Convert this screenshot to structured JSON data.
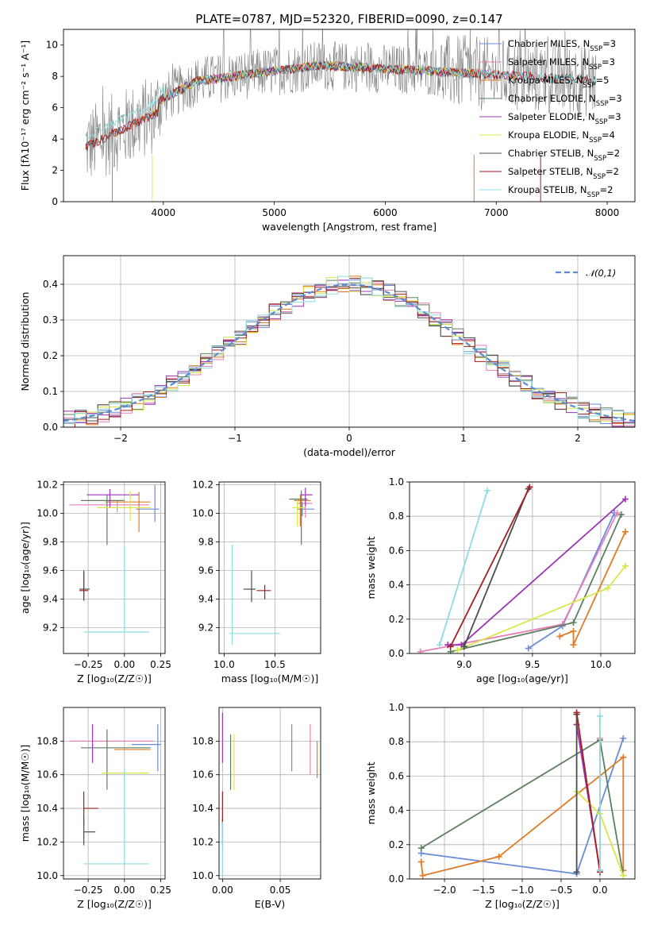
{
  "figure_title": "PLATE=0787, MJD=52320, FIBERID=0090, z=0.147",
  "chart_data": [
    {
      "id": "spectrum",
      "type": "line",
      "title": "PLATE=0787, MJD=52320, FIBERID=0090, z=0.147",
      "xlabel": "wavelength [Angstrom, rest frame]",
      "ylabel": "Flux [fλ10⁻¹⁷ erg cm⁻² s⁻¹ A⁻¹]",
      "xlim": [
        3100,
        8250
      ],
      "ylim": [
        0,
        11
      ],
      "xticks": [
        4000,
        5000,
        6000,
        7000,
        8000
      ],
      "yticks": [
        0,
        2,
        4,
        6,
        8,
        10
      ],
      "grid": false,
      "legend_position": "upper right",
      "data_series": {
        "name": "",
        "color": "#808080",
        "x_range": [
          3300,
          7900
        ]
      },
      "model_series": [
        {
          "name": "Chabrier MILES, NSSP=3",
          "label_base": "Chabrier MILES, N",
          "label_sub": "SSP",
          "label_tail": "=3",
          "color": "#6A8BD8",
          "x_range": [
            3540,
            7400
          ]
        },
        {
          "name": "Salpeter MILES, NSSP=3",
          "label_base": "Salpeter MILES, N",
          "label_sub": "SSP",
          "label_tail": "=3",
          "color": "#E87FB8",
          "x_range": [
            3540,
            7400
          ]
        },
        {
          "name": "Kroupa MILES, NSSP=5",
          "label_base": "Kroupa MILES, N",
          "label_sub": "SSP",
          "label_tail": "=5",
          "color": "#E07B25",
          "x_range": [
            3540,
            7400
          ]
        },
        {
          "name": "Chabrier ELODIE, NSSP=3",
          "label_base": "Chabrier ELODIE, N",
          "label_sub": "SSP",
          "label_tail": "=3",
          "color": "#5E7F5E",
          "x_range": [
            3900,
            6800
          ]
        },
        {
          "name": "Salpeter ELODIE, NSSP=3",
          "label_base": "Salpeter ELODIE, N",
          "label_sub": "SSP",
          "label_tail": "=3",
          "color": "#9B35B5",
          "x_range": [
            3900,
            6800
          ]
        },
        {
          "name": "Kroupa ELODIE, NSSP=4",
          "label_base": "Kroupa ELODIE, N",
          "label_sub": "SSP",
          "label_tail": "=4",
          "color": "#D8E84A",
          "x_range": [
            3900,
            6800
          ]
        },
        {
          "name": "Chabrier STELIB, NSSP=2",
          "label_base": "Chabrier STELIB, N",
          "label_sub": "SSP",
          "label_tail": "=2",
          "color": "#4D4D4D",
          "x_range": [
            3300,
            7900
          ]
        },
        {
          "name": "Salpeter STELIB, NSSP=2",
          "label_base": "Salpeter STELIB, N",
          "label_sub": "SSP",
          "label_tail": "=2",
          "color": "#A31F23",
          "x_range": [
            3300,
            7900
          ]
        },
        {
          "name": "Kroupa STELIB, NSSP=2",
          "label_base": "Kroupa STELIB, N",
          "label_sub": "SSP",
          "label_tail": "=2",
          "color": "#8EDCE0",
          "x_range": [
            3300,
            7900
          ]
        }
      ]
    },
    {
      "id": "residual-histogram",
      "type": "step-histogram",
      "xlabel": "(data-model)/error",
      "ylabel": "Normed distribution",
      "xlim": [
        -2.5,
        2.5
      ],
      "ylim": [
        0,
        0.48
      ],
      "xticks": [
        -2,
        -1,
        0,
        1,
        2
      ],
      "xticklabels": [
        "−2",
        "−1",
        "0",
        "1",
        "2"
      ],
      "yticks": [
        0,
        0.1,
        0.2,
        0.3,
        0.4
      ],
      "yticklabels": [
        "0.0",
        "0.1",
        "0.2",
        "0.3",
        "0.4"
      ],
      "grid": true,
      "bin_width": 0.1,
      "gaussian": {
        "label": "𝒩(0,1)",
        "mean": 0,
        "sigma": 1,
        "color": "#5B8CD0"
      },
      "legend_position": "upper right"
    },
    {
      "id": "age-vs-Z",
      "type": "errorbar",
      "xlabel": "Z [log₁₀(Z/Z☉)]",
      "ylabel": "age  [log₁₀(age/yr)]",
      "xlim": [
        -0.42,
        0.28
      ],
      "ylim": [
        9.02,
        10.22
      ],
      "xticks": [
        -0.25,
        0,
        0.25
      ],
      "xticklabels": [
        "−0.25",
        "0.00",
        "0.25"
      ],
      "yticks": [
        9.2,
        9.4,
        9.6,
        9.8,
        10.0,
        10.2
      ],
      "yticklabels": [
        "9.2",
        "9.4",
        "9.6",
        "9.8",
        "10.0",
        "10.2"
      ],
      "grid": true,
      "points": [
        {
          "color": "#6A8BD8",
          "x": 0.21,
          "xerr": [
            0.13,
            0.03
          ],
          "y": 10.03,
          "yerr": [
            0.09,
            0.17
          ]
        },
        {
          "color": "#E87FB8",
          "x": -0.05,
          "xerr": [
            0.33,
            0.22
          ],
          "y": 10.06,
          "yerr": [
            0.05,
            0.03
          ]
        },
        {
          "color": "#E07B25",
          "x": 0.1,
          "xerr": [
            0.23,
            0.08
          ],
          "y": 10.08,
          "yerr": [
            0.21,
            0.07
          ]
        },
        {
          "color": "#5E7F5E",
          "x": -0.12,
          "xerr": [
            0.18,
            0.12
          ],
          "y": 10.09,
          "yerr": [
            0.31,
            0.04
          ]
        },
        {
          "color": "#9B35B5",
          "x": -0.1,
          "xerr": [
            0.16,
            0.2
          ],
          "y": 10.13,
          "yerr": [
            0.09,
            0.04
          ]
        },
        {
          "color": "#D8E84A",
          "x": 0.04,
          "xerr": [
            0.23,
            0.14
          ],
          "y": 10.04,
          "yerr": [
            0.09,
            0.12
          ]
        },
        {
          "color": "#4D4D4D",
          "x": -0.28,
          "xerr": [
            0.03,
            0.04
          ],
          "y": 9.47,
          "yerr": [
            0.08,
            0.13
          ]
        },
        {
          "color": "#A31F23",
          "x": -0.28,
          "xerr": [
            0.03,
            0.03
          ],
          "y": 9.46,
          "yerr": [
            0.07,
            0.13
          ]
        },
        {
          "color": "#8EDCE0",
          "x": 0.0,
          "xerr": [
            0.28,
            0.17
          ],
          "y": 9.17,
          "yerr": [
            0.0,
            0.6
          ]
        }
      ]
    },
    {
      "id": "age-vs-mass",
      "type": "errorbar",
      "xlabel": "mass [log₁₀(M/M☉)]",
      "ylabel": "",
      "xlim": [
        9.95,
        10.95
      ],
      "ylim": [
        9.02,
        10.22
      ],
      "xticks": [
        10.0,
        10.5
      ],
      "xticklabels": [
        "10.0",
        "10.5"
      ],
      "yticks": [
        9.2,
        9.4,
        9.6,
        9.8,
        10.0,
        10.2
      ],
      "yticklabels": [
        "9.2",
        "9.4",
        "9.6",
        "9.8",
        "10.0",
        "10.2"
      ],
      "grid": true,
      "points": [
        {
          "color": "#6A8BD8",
          "x": 10.77,
          "xerr": [
            0.05,
            0.12
          ],
          "y": 10.03,
          "yerr": [
            0.05,
            0.05
          ]
        },
        {
          "color": "#E87FB8",
          "x": 10.8,
          "xerr": [
            0.08,
            0.07
          ],
          "y": 10.07,
          "yerr": [
            0.1,
            0.04
          ]
        },
        {
          "color": "#E07B25",
          "x": 10.75,
          "xerr": [
            0.06,
            0.1
          ],
          "y": 10.09,
          "yerr": [
            0.18,
            0.04
          ]
        },
        {
          "color": "#5E7F5E",
          "x": 10.76,
          "xerr": [
            0.12,
            0.06
          ],
          "y": 10.1,
          "yerr": [
            0.32,
            0.06
          ]
        },
        {
          "color": "#9B35B5",
          "x": 10.8,
          "xerr": [
            0.05,
            0.07
          ],
          "y": 10.13,
          "yerr": [
            0.08,
            0.05
          ]
        },
        {
          "color": "#D8E84A",
          "x": 10.72,
          "xerr": [
            0.05,
            0.07
          ],
          "y": 10.04,
          "yerr": [
            0.13,
            0.05
          ]
        },
        {
          "color": "#4D4D4D",
          "x": 10.27,
          "xerr": [
            0.08,
            0.04
          ],
          "y": 9.47,
          "yerr": [
            0.09,
            0.13
          ]
        },
        {
          "color": "#A31F23",
          "x": 10.4,
          "xerr": [
            0.08,
            0.06
          ],
          "y": 9.46,
          "yerr": [
            0.06,
            0.04
          ]
        },
        {
          "color": "#8EDCE0",
          "x": 10.08,
          "xerr": [
            0.03,
            0.47
          ],
          "y": 9.16,
          "yerr": [
            0.08,
            0.62
          ]
        }
      ]
    },
    {
      "id": "massweight-vs-age",
      "type": "line",
      "xlabel": "age  [log₁₀(age/yr)]",
      "ylabel": "mass weight",
      "xlim": [
        8.6,
        10.25
      ],
      "ylim": [
        0,
        1
      ],
      "xticks": [
        9.0,
        9.5,
        10.0
      ],
      "xticklabels": [
        "9.0",
        "9.5",
        "10.0"
      ],
      "yticks": [
        0,
        0.2,
        0.4,
        0.6,
        0.8,
        1.0
      ],
      "yticklabels": [
        "0.0",
        "0.2",
        "0.4",
        "0.6",
        "0.8",
        "1.0"
      ],
      "grid": true,
      "series": [
        {
          "color": "#6A8BD8",
          "x": [
            9.47,
            9.72,
            10.1
          ],
          "y": [
            0.03,
            0.16,
            0.82
          ]
        },
        {
          "color": "#E87FB8",
          "x": [
            8.68,
            9.72,
            10.12
          ],
          "y": [
            0.01,
            0.17,
            0.82
          ]
        },
        {
          "color": "#E07B25",
          "x": [
            9.7,
            9.8,
            9.8,
            10.18
          ],
          "y": [
            0.1,
            0.13,
            0.05,
            0.71
          ]
        },
        {
          "color": "#5E7F5E",
          "x": [
            8.9,
            9.8,
            10.15
          ],
          "y": [
            0.01,
            0.18,
            0.81
          ]
        },
        {
          "color": "#9B35B5",
          "x": [
            8.88,
            8.98,
            10.18
          ],
          "y": [
            0.05,
            0.05,
            0.9
          ]
        },
        {
          "color": "#D8E84A",
          "x": [
            8.95,
            10.05,
            10.18
          ],
          "y": [
            0.02,
            0.38,
            0.51
          ]
        },
        {
          "color": "#4D4D4D",
          "x": [
            9.0,
            9.47
          ],
          "y": [
            0.04,
            0.96
          ]
        },
        {
          "color": "#A31F23",
          "x": [
            8.9,
            9.48
          ],
          "y": [
            0.04,
            0.97
          ]
        },
        {
          "color": "#8EDCE0",
          "x": [
            8.82,
            9.17
          ],
          "y": [
            0.05,
            0.95
          ]
        }
      ]
    },
    {
      "id": "mass-vs-Z",
      "type": "errorbar",
      "xlabel": "Z [log₁₀(Z/Z☉)]",
      "ylabel": "mass [log₁₀(M/M☉)]",
      "xlim": [
        -0.42,
        0.28
      ],
      "ylim": [
        9.98,
        11.0
      ],
      "xticks": [
        -0.25,
        0,
        0.25
      ],
      "xticklabels": [
        "−0.25",
        "0.00",
        "0.25"
      ],
      "yticks": [
        10.0,
        10.2,
        10.4,
        10.6,
        10.8
      ],
      "yticklabels": [
        "10.0",
        "10.2",
        "10.4",
        "10.6",
        "10.8"
      ],
      "grid": true,
      "points": [
        {
          "color": "#6A8BD8",
          "x": 0.23,
          "xerr": [
            0.18,
            0.02
          ],
          "y": 10.78,
          "yerr": [
            0.16,
            0.12
          ]
        },
        {
          "color": "#E87FB8",
          "x": -0.05,
          "xerr": [
            0.33,
            0.25
          ],
          "y": 10.8,
          "yerr": [
            0.0,
            0.0
          ]
        },
        {
          "color": "#E07B25",
          "x": 0.18,
          "xerr": [
            0.25,
            0.0
          ],
          "y": 10.75,
          "yerr": [
            0.0,
            0.0
          ]
        },
        {
          "color": "#5E7F5E",
          "x": -0.12,
          "xerr": [
            0.18,
            0.3
          ],
          "y": 10.76,
          "yerr": [
            0.25,
            0.11
          ]
        },
        {
          "color": "#9B35B5",
          "x": -0.22,
          "xerr": [
            0.0,
            0.0
          ],
          "y": 10.77,
          "yerr": [
            0.1,
            0.13
          ]
        },
        {
          "color": "#D8E84A",
          "x": 0.17,
          "xerr": [
            0.33,
            0.0
          ],
          "y": 10.61,
          "yerr": [
            0.0,
            0.0
          ]
        },
        {
          "color": "#4D4D4D",
          "x": -0.28,
          "xerr": [
            0.0,
            0.08
          ],
          "y": 10.26,
          "yerr": [
            0.08,
            0.08
          ]
        },
        {
          "color": "#A31F23",
          "x": -0.28,
          "xerr": [
            0.0,
            0.1
          ],
          "y": 10.4,
          "yerr": [
            0.1,
            0.1
          ]
        },
        {
          "color": "#8EDCE0",
          "x": 0.0,
          "xerr": [
            0.28,
            0.17
          ],
          "y": 10.07,
          "yerr": [
            0.0,
            0.57
          ]
        }
      ]
    },
    {
      "id": "mass-vs-EBV",
      "type": "errorbar",
      "xlabel": "E(B-V)",
      "ylabel": "",
      "xlim": [
        -0.003,
        0.085
      ],
      "ylim": [
        9.98,
        11.0
      ],
      "xticks": [
        0.0,
        0.05
      ],
      "xticklabels": [
        "0.00",
        "0.05"
      ],
      "yticks": [
        10.0,
        10.2,
        10.4,
        10.6,
        10.8
      ],
      "yticklabels": [
        "10.0",
        "10.2",
        "10.4",
        "10.6",
        "10.8"
      ],
      "grid": true,
      "points": [
        {
          "color": "#6A8BD8",
          "x": 0.06,
          "xerr": [
            0,
            0
          ],
          "y": 10.78,
          "yerr": [
            0.16,
            0.12
          ]
        },
        {
          "color": "#E87FB8",
          "x": 0.076,
          "xerr": [
            0,
            0
          ],
          "y": 10.8,
          "yerr": [
            0.2,
            0.1
          ]
        },
        {
          "color": "#E07B25",
          "x": 0.082,
          "xerr": [
            0,
            0
          ],
          "y": 10.75,
          "yerr": [
            0.17,
            0.05
          ]
        },
        {
          "color": "#5E7F5E",
          "x": 0.007,
          "xerr": [
            0,
            0
          ],
          "y": 10.76,
          "yerr": [
            0.25,
            0.08
          ]
        },
        {
          "color": "#9B35B5",
          "x": 0.0,
          "xerr": [
            0,
            0
          ],
          "y": 10.77,
          "yerr": [
            0.1,
            0.2
          ]
        },
        {
          "color": "#D8E84A",
          "x": 0.01,
          "xerr": [
            0,
            0
          ],
          "y": 10.61,
          "yerr": [
            0.1,
            0.23
          ]
        },
        {
          "color": "#4D4D4D",
          "x": 0.0,
          "xerr": [
            0,
            0
          ],
          "y": 10.26,
          "yerr": [
            0.08,
            0.08
          ]
        },
        {
          "color": "#A31F23",
          "x": 0.0,
          "xerr": [
            0,
            0
          ],
          "y": 10.4,
          "yerr": [
            0.1,
            0.1
          ]
        },
        {
          "color": "#8EDCE0",
          "x": 0.0,
          "xerr": [
            0,
            0
          ],
          "y": 10.07,
          "yerr": [
            0.07,
            0.25
          ]
        }
      ]
    },
    {
      "id": "massweight-vs-Z",
      "type": "line",
      "xlabel": "Z [log₁₀(Z/Z☉)]",
      "ylabel": "mass weight",
      "xlim": [
        -2.45,
        0.45
      ],
      "ylim": [
        0,
        1
      ],
      "xticks": [
        -2.0,
        -1.5,
        -1.0,
        -0.5,
        0.0
      ],
      "xticklabels": [
        "−2.0",
        "−1.5",
        "−1.0",
        "−0.5",
        "0.0"
      ],
      "yticks": [
        0,
        0.2,
        0.4,
        0.6,
        0.8,
        1.0
      ],
      "yticklabels": [
        "0.0",
        "0.2",
        "0.4",
        "0.6",
        "0.8",
        "1.0"
      ],
      "grid": true,
      "series": [
        {
          "color": "#6A8BD8",
          "x": [
            -2.3,
            -0.3,
            0.3
          ],
          "y": [
            0.15,
            0.03,
            0.82
          ]
        },
        {
          "color": "#E87FB8",
          "x": [
            -0.3,
            0.0,
            0.0
          ],
          "y": [
            0.9,
            0.05,
            0.82
          ]
        },
        {
          "color": "#E07B25",
          "x": [
            -2.3,
            -2.28,
            -1.3,
            0.3,
            0.3
          ],
          "y": [
            0.1,
            0.02,
            0.13,
            0.71,
            0.05
          ]
        },
        {
          "color": "#5E7F5E",
          "x": [
            -2.3,
            0.0,
            0.3
          ],
          "y": [
            0.18,
            0.81,
            0.02
          ]
        },
        {
          "color": "#9B35B5",
          "x": [
            -0.3,
            0.0
          ],
          "y": [
            0.9,
            0.05
          ]
        },
        {
          "color": "#D8E84A",
          "x": [
            -0.3,
            0.0,
            0.3
          ],
          "y": [
            0.51,
            0.38,
            0.02
          ]
        },
        {
          "color": "#4D4D4D",
          "x": [
            -0.3,
            -0.3
          ],
          "y": [
            0.04,
            0.96
          ]
        },
        {
          "color": "#A31F23",
          "x": [
            -0.3,
            0.0
          ],
          "y": [
            0.97,
            0.04
          ]
        },
        {
          "color": "#8EDCE0",
          "x": [
            0.0,
            0.0
          ],
          "y": [
            0.05,
            0.95
          ]
        }
      ]
    }
  ]
}
